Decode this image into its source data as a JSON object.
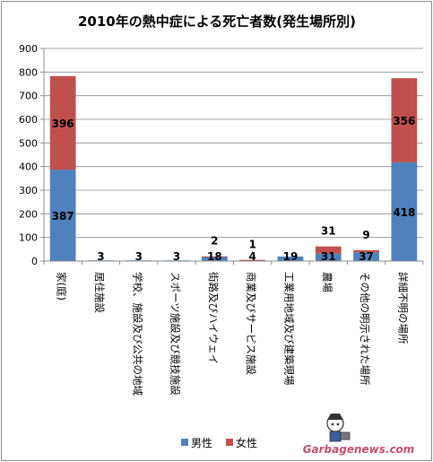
{
  "chart_data": {
    "type": "bar",
    "stacked": true,
    "title": "2010年の熱中症による死亡者数(発生場所別)",
    "categories": [
      "家(庭)",
      "居住施設",
      "学校、施設及び公共の地域",
      "スポーツ施設及び競技施設",
      "街路及びハイウェイ",
      "商業及びサービス施設",
      "工業用地域及び建築現場",
      "農場",
      "その他の明示された場所",
      "詳細不明の場所"
    ],
    "series": [
      {
        "name": "男性",
        "color": "#4F81BD",
        "values": [
          387,
          3,
          3,
          3,
          18,
          4,
          19,
          31,
          37,
          418
        ]
      },
      {
        "name": "女性",
        "color": "#C0504D",
        "values": [
          396,
          0,
          0,
          0,
          2,
          1,
          0,
          31,
          9,
          356
        ]
      }
    ],
    "ylim": [
      0,
      900
    ],
    "yticks": [
      0,
      100,
      200,
      300,
      400,
      500,
      600,
      700,
      800,
      900
    ],
    "grid": true,
    "legend_position": "bottom",
    "data_labels": [
      {
        "series": 0,
        "index": 0,
        "text": "387"
      },
      {
        "series": 1,
        "index": 0,
        "text": "396"
      },
      {
        "series": 0,
        "index": 1,
        "text": "3"
      },
      {
        "series": 0,
        "index": 2,
        "text": "3"
      },
      {
        "series": 0,
        "index": 3,
        "text": "3"
      },
      {
        "series": 0,
        "index": 4,
        "text": "18"
      },
      {
        "series": 1,
        "index": 4,
        "text": "2"
      },
      {
        "series": 0,
        "index": 5,
        "text": "4"
      },
      {
        "series": 1,
        "index": 5,
        "text": "1"
      },
      {
        "series": 0,
        "index": 6,
        "text": "19"
      },
      {
        "series": 0,
        "index": 7,
        "text": "31"
      },
      {
        "series": 1,
        "index": 7,
        "text": "31"
      },
      {
        "series": 0,
        "index": 8,
        "text": "37"
      },
      {
        "series": 1,
        "index": 8,
        "text": "9"
      },
      {
        "series": 0,
        "index": 9,
        "text": "418"
      },
      {
        "series": 1,
        "index": 9,
        "text": "356"
      }
    ]
  },
  "watermark": {
    "text": "Garbagenews.com",
    "color": "#C05070"
  }
}
